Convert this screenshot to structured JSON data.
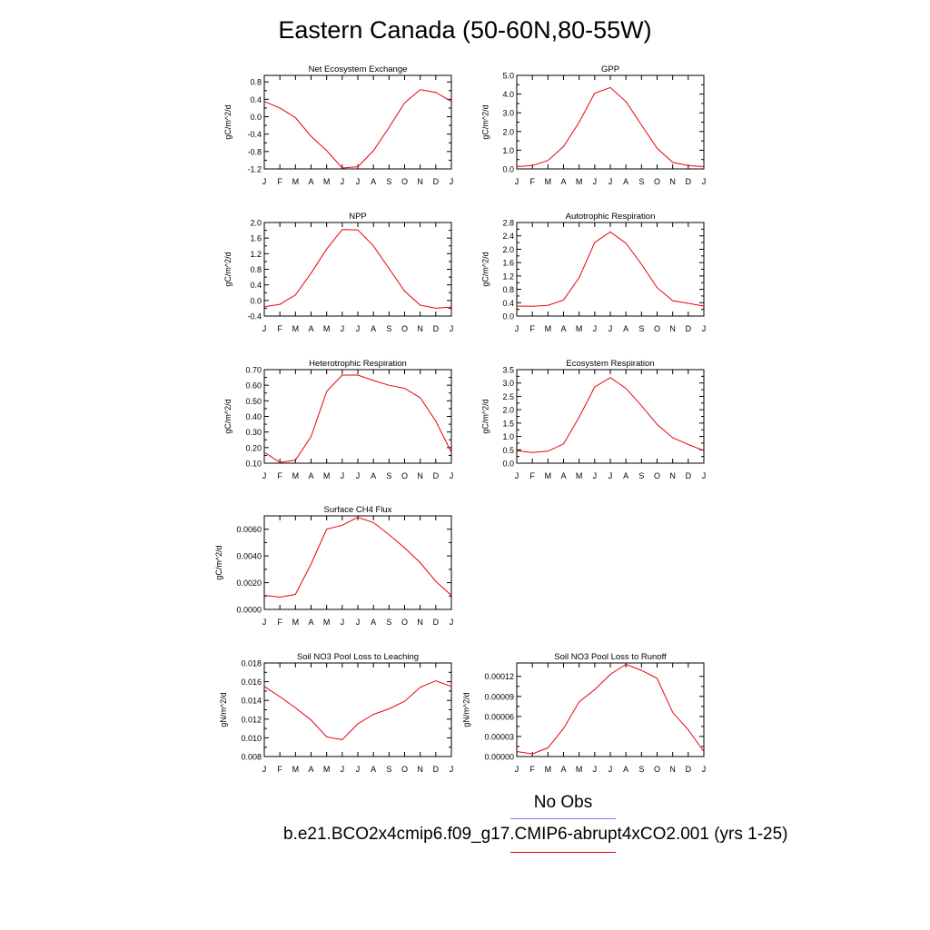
{
  "title": "Eastern Canada (50-60N,80-55W)",
  "months": [
    "J",
    "F",
    "M",
    "A",
    "M",
    "J",
    "J",
    "A",
    "S",
    "O",
    "N",
    "D",
    "J"
  ],
  "colors": {
    "model": "#e8000b",
    "obs": "#8080ff",
    "axis": "#000000"
  },
  "legend": {
    "obs_label": "No Obs",
    "case_label": "b.e21.BCO2x4cmip6.f09_g17.CMIP6-abrupt4xCO2.001 (yrs 1-25)"
  },
  "chart_data": [
    {
      "type": "line",
      "title": "Net Ecosystem Exchange",
      "ylabel": "gC/m^2/d",
      "ylim": [
        -1.2,
        0.95
      ],
      "yticks": [
        "-1.2",
        "-0.8",
        "-0.4",
        "0.0",
        "0.4",
        "0.8"
      ],
      "ytick_values": [
        -1.2,
        -0.8,
        -0.4,
        0.0,
        0.4,
        0.8
      ],
      "values": [
        0.35,
        0.2,
        -0.02,
        -0.45,
        -0.78,
        -1.18,
        -1.15,
        -0.78,
        -0.25,
        0.32,
        0.62,
        0.56,
        0.35
      ]
    },
    {
      "type": "line",
      "title": "GPP",
      "ylabel": "gC/m^2/d",
      "ylim": [
        0.0,
        5.0
      ],
      "yticks": [
        "0.0",
        "1.0",
        "2.0",
        "3.0",
        "4.0",
        "5.0"
      ],
      "ytick_values": [
        0,
        1,
        2,
        3,
        4,
        5
      ],
      "values": [
        0.12,
        0.18,
        0.45,
        1.2,
        2.5,
        4.05,
        4.35,
        3.6,
        2.35,
        1.1,
        0.35,
        0.18,
        0.12
      ]
    },
    {
      "type": "line",
      "title": "NPP",
      "ylabel": "gC/m^2/d",
      "ylim": [
        -0.4,
        2.0
      ],
      "yticks": [
        "-0.4",
        "0.0",
        "0.4",
        "0.8",
        "1.2",
        "1.6",
        "2.0"
      ],
      "ytick_values": [
        -0.4,
        0.0,
        0.4,
        0.8,
        1.2,
        1.6,
        2.0
      ],
      "values": [
        -0.16,
        -0.1,
        0.14,
        0.7,
        1.32,
        1.82,
        1.81,
        1.4,
        0.82,
        0.24,
        -0.12,
        -0.2,
        -0.17
      ]
    },
    {
      "type": "line",
      "title": "Autotrophic Respiration",
      "ylabel": "gC/m^2/d",
      "ylim": [
        0.0,
        2.8
      ],
      "yticks": [
        "0.0",
        "0.4",
        "0.8",
        "1.2",
        "1.6",
        "2.0",
        "2.4",
        "2.8"
      ],
      "ytick_values": [
        0,
        0.4,
        0.8,
        1.2,
        1.6,
        2.0,
        2.4,
        2.8
      ],
      "values": [
        0.3,
        0.29,
        0.32,
        0.48,
        1.15,
        2.2,
        2.52,
        2.18,
        1.55,
        0.85,
        0.46,
        0.38,
        0.3
      ]
    },
    {
      "type": "line",
      "title": "Heterotrophic Respiration",
      "ylabel": "gC/m^2/d",
      "ylim": [
        0.1,
        0.7
      ],
      "yticks": [
        "0.10",
        "0.20",
        "0.30",
        "0.40",
        "0.50",
        "0.60",
        "0.70"
      ],
      "ytick_values": [
        0.1,
        0.2,
        0.3,
        0.4,
        0.5,
        0.6,
        0.7
      ],
      "values": [
        0.17,
        0.105,
        0.12,
        0.27,
        0.56,
        0.665,
        0.665,
        0.63,
        0.6,
        0.58,
        0.52,
        0.37,
        0.17
      ]
    },
    {
      "type": "line",
      "title": "Ecosystem Respiration",
      "ylabel": "gC/m^2/d",
      "ylim": [
        0.0,
        3.5
      ],
      "yticks": [
        "0.0",
        "0.5",
        "1.0",
        "1.5",
        "2.0",
        "2.5",
        "3.0",
        "3.5"
      ],
      "ytick_values": [
        0,
        0.5,
        1.0,
        1.5,
        2.0,
        2.5,
        3.0,
        3.5
      ],
      "values": [
        0.47,
        0.4,
        0.45,
        0.72,
        1.72,
        2.85,
        3.2,
        2.8,
        2.15,
        1.45,
        0.95,
        0.7,
        0.47
      ]
    },
    {
      "type": "line",
      "title": "Surface CH4 Flux",
      "ylabel": "gC/m^2/d",
      "ylim": [
        0.0,
        0.007
      ],
      "yticks": [
        "0.0000",
        "0.0020",
        "0.0040",
        "0.0060"
      ],
      "ytick_values": [
        0,
        0.002,
        0.004,
        0.006
      ],
      "values": [
        0.00105,
        0.00092,
        0.00112,
        0.0034,
        0.006,
        0.0063,
        0.0069,
        0.0065,
        0.0056,
        0.0046,
        0.0035,
        0.0021,
        0.00105
      ]
    },
    {
      "type": "line",
      "title": "Soil NO3 Pool Loss to Leaching",
      "ylabel": "gN/m^2/d",
      "ylim": [
        0.008,
        0.018
      ],
      "yticks": [
        "0.008",
        "0.010",
        "0.012",
        "0.014",
        "0.016",
        "0.018"
      ],
      "ytick_values": [
        0.008,
        0.01,
        0.012,
        0.014,
        0.016,
        0.018
      ],
      "values": [
        0.0155,
        0.0144,
        0.0132,
        0.0119,
        0.0101,
        0.0098,
        0.0115,
        0.0125,
        0.0131,
        0.0139,
        0.0154,
        0.0161,
        0.0155
      ]
    },
    {
      "type": "line",
      "title": "Soil NO3 Pool Loss to Runoff",
      "ylabel": "gN/m^2/d",
      "ylim": [
        0.0,
        0.00014
      ],
      "yticks": [
        "0.00000",
        "0.00003",
        "0.00006",
        "0.00009",
        "0.00012"
      ],
      "ytick_values": [
        0,
        3e-05,
        6e-05,
        9e-05,
        0.00012
      ],
      "values": [
        7.5e-06,
        4e-06,
        1.3e-05,
        4.2e-05,
        8.2e-05,
        0.0001,
        0.000123,
        0.000138,
        0.000129,
        0.000117,
        6.6e-05,
        4e-05,
        7.5e-06
      ]
    }
  ]
}
